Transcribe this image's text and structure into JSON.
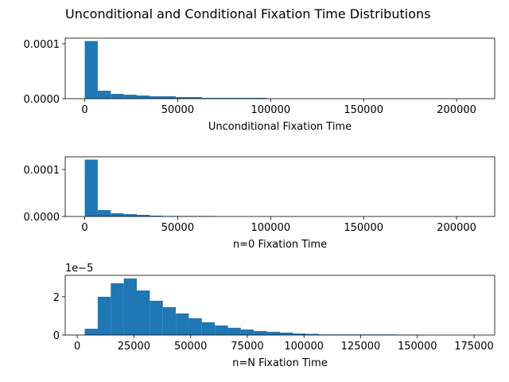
{
  "title": "Unconditional and Conditional Fixation Time Distributions",
  "chart_data": [
    {
      "type": "histogram",
      "xlabel": "Unconditional Fixation Time",
      "color": "#1f77b4",
      "bins": [
        0,
        7000,
        14000,
        21000,
        28000,
        35000,
        42000,
        49000,
        56000,
        63000,
        70000,
        77000,
        84000,
        91000,
        98000,
        105000,
        112000,
        119000,
        126000,
        133000,
        140000,
        147000,
        154000,
        161000,
        168000,
        175000,
        182000,
        189000,
        196000,
        203000,
        210000
      ],
      "values": [
        0.0001048,
        1.45e-05,
        8.7e-06,
        7.2e-06,
        5.8e-06,
        4.3e-06,
        4.3e-06,
        2.9e-06,
        2.9e-06,
        1.5e-06,
        1.5e-06,
        1.5e-06,
        1.5e-06,
        1.5e-06,
        0,
        0,
        0,
        0,
        0,
        0,
        0,
        0,
        0,
        0,
        0,
        0,
        0,
        0,
        0,
        0
      ],
      "xlim": [
        -10500,
        220500
      ],
      "xticks": [
        0,
        50000,
        100000,
        150000,
        200000
      ],
      "ylim": [
        0,
        0.00011
      ],
      "yticks": [
        {
          "value": 0,
          "label": "0.0000"
        },
        {
          "value": 0.0001,
          "label": "0.0001"
        }
      ]
    },
    {
      "type": "histogram",
      "xlabel": "n=0 Fixation Time",
      "color": "#1f77b4",
      "bins": [
        0,
        7000,
        14000,
        21000,
        28000,
        35000,
        42000,
        49000,
        56000,
        63000,
        70000,
        77000,
        84000,
        91000,
        98000,
        105000,
        112000,
        119000,
        126000,
        133000,
        140000,
        147000,
        154000,
        161000,
        168000,
        175000,
        182000,
        189000,
        196000,
        203000,
        210000
      ],
      "values": [
        0.000121,
        1.36e-05,
        6.8e-06,
        5e-06,
        3.4e-06,
        1.7e-06,
        1e-06,
        1e-06,
        1e-06,
        1e-06,
        0,
        0,
        0,
        0,
        0,
        0,
        0,
        0,
        0,
        0,
        0,
        0,
        0,
        0,
        0,
        0,
        0,
        0,
        0,
        0
      ],
      "xlim": [
        -10500,
        220500
      ],
      "xticks": [
        0,
        50000,
        100000,
        150000,
        200000
      ],
      "ylim": [
        0,
        0.000127
      ],
      "yticks": [
        {
          "value": 0,
          "label": "0.0000"
        },
        {
          "value": 0.0001,
          "label": "0.0001"
        }
      ]
    },
    {
      "type": "histogram",
      "xlabel": "n=N Fixation Time",
      "color": "#1f77b4",
      "offset_text": "1e−5",
      "bins": [
        3300,
        9040,
        14780,
        20520,
        26260,
        32000,
        37740,
        43480,
        49220,
        54960,
        60700,
        66440,
        72180,
        77920,
        83660,
        89400,
        95140,
        100880,
        106620,
        112360,
        118100,
        123840,
        129580,
        135320,
        141060,
        146800,
        152540,
        158280,
        164020,
        169760,
        175500
      ],
      "values": [
        0.33,
        2.0,
        2.71,
        2.96,
        2.33,
        1.79,
        1.46,
        1.13,
        0.88,
        0.67,
        0.5,
        0.38,
        0.29,
        0.21,
        0.17,
        0.13,
        0.08,
        0.06,
        0.03,
        0.03,
        0.03,
        0.03,
        0.03,
        0.03,
        0.02,
        0.02,
        0,
        0,
        0,
        0
      ],
      "xlim": [
        -5310,
        184110
      ],
      "xticks": [
        0,
        25000,
        50000,
        75000,
        100000,
        125000,
        150000,
        175000
      ],
      "ylim": [
        0,
        3.12
      ],
      "yticks": [
        0,
        2
      ]
    }
  ]
}
